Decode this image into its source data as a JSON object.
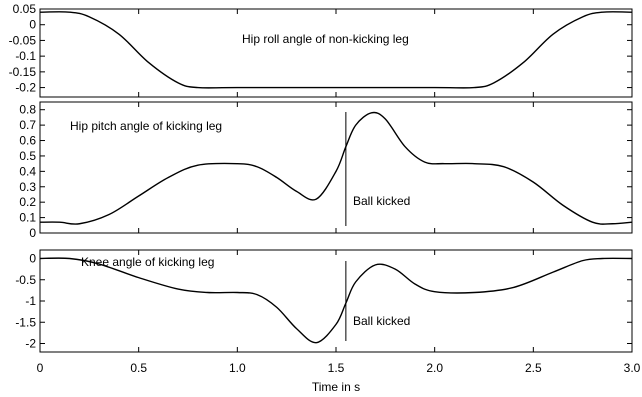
{
  "chart_data": {
    "type": "line",
    "xlabel": "Time in s",
    "xlim": [
      0,
      3.0
    ],
    "x_ticks": [
      "0",
      "0.5",
      "1.0",
      "1.5",
      "2.0",
      "2.5",
      "3.0"
    ],
    "x_tick_values": [
      0,
      0.5,
      1.0,
      1.5,
      2.0,
      2.5,
      3.0
    ],
    "grid": false,
    "panels": [
      {
        "annotation": "Hip roll angle of non-kicking leg",
        "ylim": [
          -0.23,
          0.05
        ],
        "y_ticks": [
          "0.05",
          "0",
          "-0.05",
          "-0.1",
          "-0.15",
          "-0.2"
        ],
        "y_tick_values": [
          0.05,
          0,
          -0.05,
          -0.1,
          -0.15,
          -0.2
        ],
        "series": [
          {
            "x": [
              0,
              0.15,
              0.25,
              0.4,
              0.55,
              0.7,
              0.8,
              1.0,
              1.5,
              2.0,
              2.2,
              2.3,
              2.45,
              2.6,
              2.75,
              2.85,
              3.0
            ],
            "y": [
              0.04,
              0.04,
              0.025,
              -0.03,
              -0.12,
              -0.185,
              -0.2,
              -0.2,
              -0.2,
              -0.2,
              -0.2,
              -0.185,
              -0.12,
              -0.03,
              0.025,
              0.04,
              0.04
            ]
          }
        ]
      },
      {
        "annotation": "Hip pitch angle of kicking leg",
        "vline_label": "Ball kicked",
        "vline_x": 1.55,
        "ylim": [
          0,
          0.85
        ],
        "y_ticks": [
          "0.8",
          "0.7",
          "0.6",
          "0.5",
          "0.4",
          "0.3",
          "0.2",
          "0.1",
          "0"
        ],
        "y_tick_values": [
          0.8,
          0.7,
          0.6,
          0.5,
          0.4,
          0.3,
          0.2,
          0.1,
          0
        ],
        "series": [
          {
            "x": [
              0,
              0.1,
              0.2,
              0.35,
              0.5,
              0.65,
              0.8,
              1.0,
              1.1,
              1.2,
              1.3,
              1.4,
              1.5,
              1.55,
              1.6,
              1.68,
              1.75,
              1.85,
              1.95,
              2.05,
              2.2,
              2.35,
              2.5,
              2.65,
              2.8,
              2.9,
              3.0
            ],
            "y": [
              0.07,
              0.07,
              0.06,
              0.12,
              0.24,
              0.36,
              0.44,
              0.45,
              0.43,
              0.36,
              0.27,
              0.22,
              0.4,
              0.56,
              0.7,
              0.78,
              0.74,
              0.56,
              0.46,
              0.45,
              0.45,
              0.43,
              0.33,
              0.18,
              0.07,
              0.06,
              0.07
            ]
          }
        ]
      },
      {
        "annotation": "Knee angle of kicking leg",
        "vline_label": "Ball kicked",
        "vline_x": 1.55,
        "ylim": [
          -2.2,
          0.2
        ],
        "y_ticks": [
          "0",
          "-0.5",
          "-1",
          "-1.5",
          "-2"
        ],
        "y_tick_values": [
          0,
          -0.5,
          -1,
          -1.5,
          -2
        ],
        "series": [
          {
            "x": [
              0,
              0.15,
              0.3,
              0.5,
              0.7,
              0.85,
              1.0,
              1.1,
              1.2,
              1.3,
              1.4,
              1.5,
              1.55,
              1.6,
              1.7,
              1.8,
              1.9,
              2.0,
              2.2,
              2.4,
              2.6,
              2.75,
              2.85,
              3.0
            ],
            "y": [
              0,
              0,
              -0.13,
              -0.45,
              -0.72,
              -0.8,
              -0.8,
              -0.85,
              -1.15,
              -1.65,
              -1.98,
              -1.55,
              -1.05,
              -0.55,
              -0.15,
              -0.25,
              -0.6,
              -0.78,
              -0.8,
              -0.68,
              -0.32,
              -0.05,
              0,
              0
            ]
          }
        ]
      }
    ]
  }
}
